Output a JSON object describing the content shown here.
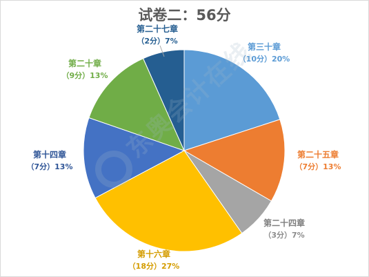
{
  "chart_data": {
    "type": "pie",
    "title": "试卷二：56分",
    "slices": [
      {
        "name": "第三十章",
        "label": "（10分）20%",
        "value": 10,
        "percent": 20,
        "color": "#5b9bd5",
        "label_color": "#5b9bd5"
      },
      {
        "name": "第二十五章",
        "label": "（7分）13%",
        "value": 7,
        "percent": 13,
        "color": "#ed7d31",
        "label_color": "#ed7d31"
      },
      {
        "name": "第二十四章",
        "label": "（3分）7%",
        "value": 3,
        "percent": 7,
        "color": "#a5a5a5",
        "label_color": "#8c8c8c"
      },
      {
        "name": "第十六章",
        "label": "（18分）27%",
        "value": 18,
        "percent": 27,
        "color": "#ffc000",
        "label_color": "#d49c00"
      },
      {
        "name": "第十四章",
        "label": "（7分）13%",
        "value": 7,
        "percent": 13,
        "color": "#4472c4",
        "label_color": "#2f5597"
      },
      {
        "name": "第二十章",
        "label": "（9分）13%",
        "value": 9,
        "percent": 13,
        "color": "#70ad47",
        "label_color": "#70ad47"
      },
      {
        "name": "第二十七章",
        "label": "（2分）7%",
        "value": 2,
        "percent": 7,
        "color": "#255e91",
        "label_color": "#255e91"
      }
    ]
  },
  "watermark": "东奥会计在线"
}
